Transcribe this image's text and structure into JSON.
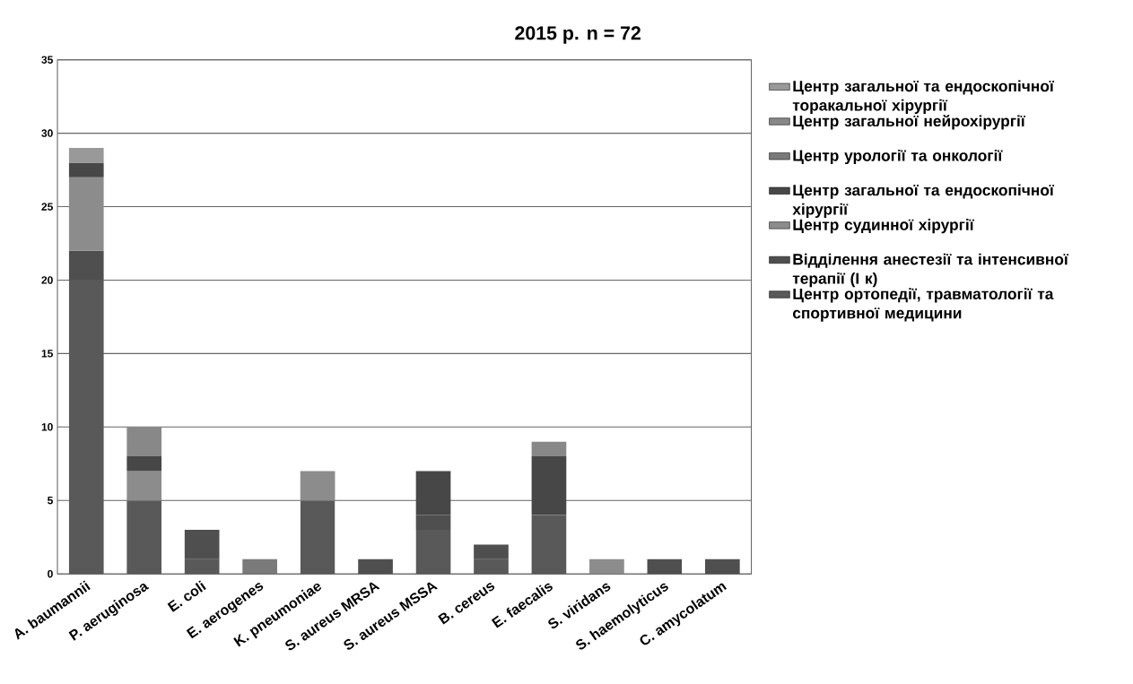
{
  "chart_data": {
    "type": "bar",
    "title": "2015 р. n = 72",
    "categories": [
      "A. baumannii",
      "P. aeruginosa",
      "E. coli",
      "E. aerogenes",
      "K. pneumoniae",
      "S. aureus MRSA",
      "S. aureus MSSA",
      "B. cereus",
      "E. faecalis",
      "S. viridans",
      "S. haemolyticus",
      "C. amycolatum"
    ],
    "stacked": true,
    "series": [
      {
        "name": "Центр ортопедії, травматології та спортивної медицини",
        "color": "#595959",
        "values": [
          20,
          5,
          1,
          null,
          5,
          null,
          3,
          1,
          4,
          null,
          null,
          null
        ]
      },
      {
        "name": "Відділення анестезії та інтенсивної терапії (І к)",
        "color": "#4f4f4f",
        "values": [
          2,
          null,
          2,
          null,
          null,
          1,
          1,
          1,
          null,
          null,
          1,
          1
        ]
      },
      {
        "name": "Центр судинної хірургії",
        "color": "#8c8c8c",
        "values": [
          5,
          2,
          null,
          null,
          2,
          null,
          null,
          null,
          null,
          1,
          null,
          null
        ]
      },
      {
        "name": "Центр загальної та ендоскопічної хірургії",
        "color": "#474747",
        "values": [
          1,
          1,
          null,
          null,
          null,
          null,
          3,
          null,
          4,
          null,
          null,
          null
        ]
      },
      {
        "name": "Центр урології та онкології",
        "color": "#7a7a7a",
        "values": [
          null,
          null,
          null,
          1,
          null,
          null,
          null,
          null,
          null,
          null,
          null,
          null
        ]
      },
      {
        "name": "Центр загальної нейрохірургії",
        "color": "#888888",
        "values": [
          null,
          2,
          null,
          null,
          null,
          null,
          null,
          null,
          1,
          null,
          null,
          null
        ]
      },
      {
        "name": "Центр загальної та ендоскопічної торакальної хірургії",
        "color": "#999999",
        "values": [
          1,
          null,
          null,
          null,
          null,
          null,
          null,
          null,
          null,
          null,
          null,
          null
        ]
      }
    ],
    "ylim": [
      0,
      35
    ],
    "yticks": [
      0,
      5,
      10,
      15,
      20,
      25,
      30,
      35
    ],
    "grid": "y",
    "legend": "right"
  }
}
